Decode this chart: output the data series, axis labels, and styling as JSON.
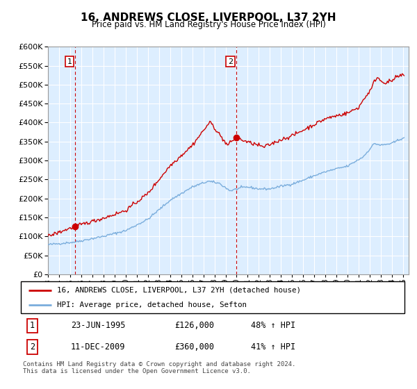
{
  "title": "16, ANDREWS CLOSE, LIVERPOOL, L37 2YH",
  "subtitle": "Price paid vs. HM Land Registry's House Price Index (HPI)",
  "ylim": [
    0,
    600000
  ],
  "yticks": [
    0,
    50000,
    100000,
    150000,
    200000,
    250000,
    300000,
    350000,
    400000,
    450000,
    500000,
    550000,
    600000
  ],
  "sale1_x": 1995.47,
  "sale1_price": 126000,
  "sale2_x": 2009.95,
  "sale2_price": 360000,
  "line_color_property": "#cc0000",
  "line_color_hpi": "#7aaddc",
  "bg_color": "#ddeeff",
  "legend_label_property": "16, ANDREWS CLOSE, LIVERPOOL, L37 2YH (detached house)",
  "legend_label_hpi": "HPI: Average price, detached house, Sefton",
  "table_row1": [
    "1",
    "23-JUN-1995",
    "£126,000",
    "48% ↑ HPI"
  ],
  "table_row2": [
    "2",
    "11-DEC-2009",
    "£360,000",
    "41% ↑ HPI"
  ],
  "footnote": "Contains HM Land Registry data © Crown copyright and database right 2024.\nThis data is licensed under the Open Government Licence v3.0."
}
